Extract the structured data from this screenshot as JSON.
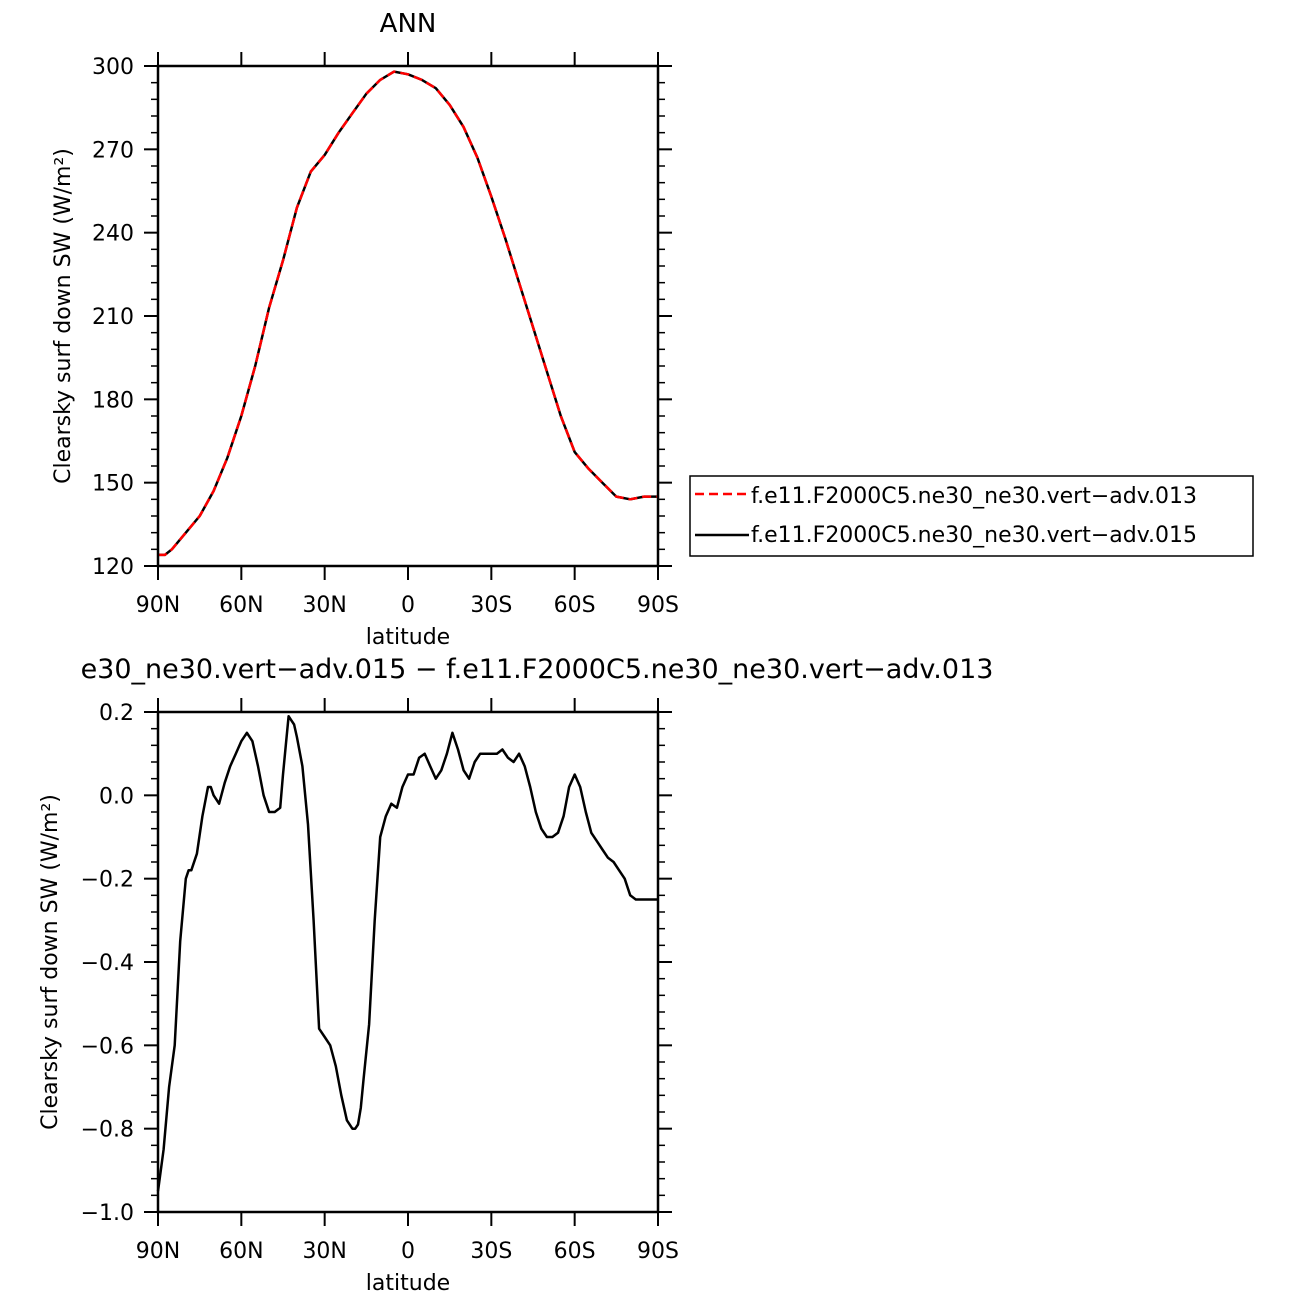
{
  "chart_data": [
    {
      "type": "line",
      "title": "ANN",
      "xlabel": "latitude",
      "ylabel": "Clearsky surf down SW (W/m²)",
      "xlim": [
        90,
        -90
      ],
      "ylim": [
        120,
        300
      ],
      "xticks": [
        90,
        60,
        30,
        0,
        -30,
        -60,
        -90
      ],
      "xtick_labels": [
        "90N",
        "60N",
        "30N",
        "0",
        "30S",
        "60S",
        "90S"
      ],
      "yticks": [
        120,
        150,
        180,
        210,
        240,
        270,
        300
      ],
      "ytick_labels": [
        "120",
        "150",
        "180",
        "210",
        "240",
        "270",
        "300"
      ],
      "grid": false,
      "legend": "right",
      "x": [
        90,
        87.5,
        85,
        80,
        75,
        70,
        65,
        60,
        55,
        50,
        45,
        40,
        35,
        30,
        25,
        20,
        15,
        10,
        5,
        0,
        -5,
        -10,
        -15,
        -20,
        -25,
        -30,
        -35,
        -40,
        -45,
        -50,
        -55,
        -60,
        -65,
        -70,
        -75,
        -80,
        -85,
        -87.5,
        -90
      ],
      "series": [
        {
          "name": "f.e11.F2000C5.ne30_ne30.vert−adv.013",
          "color": "#ff0000",
          "dash": true,
          "values": [
            124,
            124,
            126,
            132,
            138,
            147,
            159,
            174,
            192,
            213,
            230,
            249,
            262,
            268,
            276,
            283,
            290,
            295,
            298,
            297,
            295,
            292,
            286,
            278,
            267,
            253,
            238,
            222,
            206,
            190,
            174,
            161,
            155,
            150,
            145,
            144,
            145,
            145,
            145
          ]
        },
        {
          "name": "f.e11.F2000C5.ne30_ne30.vert−adv.015",
          "color": "#000000",
          "dash": false,
          "values": [
            124,
            124,
            126,
            132,
            138,
            147,
            159,
            174,
            192,
            213,
            230,
            249,
            262,
            268,
            276,
            283,
            290,
            295,
            298,
            297,
            295,
            292,
            286,
            278,
            267,
            253,
            238,
            222,
            206,
            190,
            174,
            161,
            155,
            150,
            145,
            144,
            145,
            145,
            145
          ]
        }
      ]
    },
    {
      "type": "line",
      "title": "e30_ne30.vert−adv.015 − f.e11.F2000C5.ne30_ne30.vert−adv.013",
      "xlabel": "latitude",
      "ylabel": "Clearsky surf down SW (W/m²)",
      "xlim": [
        90,
        -90
      ],
      "ylim": [
        -1.0,
        0.2
      ],
      "xticks": [
        90,
        60,
        30,
        0,
        -30,
        -60,
        -90
      ],
      "xtick_labels": [
        "90N",
        "60N",
        "30N",
        "0",
        "30S",
        "60S",
        "90S"
      ],
      "yticks": [
        -1.0,
        -0.8,
        -0.6,
        -0.4,
        -0.2,
        0.0,
        0.2
      ],
      "ytick_labels": [
        "−1.0",
        "−0.8",
        "−0.6",
        "−0.4",
        "−0.2",
        "0.0",
        "0.2"
      ],
      "grid": false,
      "x": [
        90,
        88,
        86,
        84,
        82,
        80,
        79,
        78,
        76,
        74,
        72,
        71,
        70,
        68,
        66,
        64,
        62,
        60,
        58,
        56,
        54,
        52,
        50,
        48,
        46,
        45,
        44,
        43,
        42,
        41,
        40,
        38,
        36,
        34,
        32,
        30,
        28,
        26,
        24,
        22,
        20,
        19,
        18,
        17,
        16,
        14,
        12,
        10,
        8,
        6,
        4,
        2,
        0,
        -2,
        -4,
        -6,
        -8,
        -10,
        -12,
        -14,
        -16,
        -18,
        -20,
        -22,
        -24,
        -26,
        -28,
        -30,
        -32,
        -34,
        -36,
        -38,
        -40,
        -42,
        -44,
        -46,
        -48,
        -50,
        -52,
        -54,
        -56,
        -58,
        -60,
        -62,
        -64,
        -66,
        -68,
        -70,
        -72,
        -74,
        -76,
        -78,
        -80,
        -82,
        -84,
        -86,
        -88,
        -90
      ],
      "series": [
        {
          "color": "#000000",
          "values": [
            -0.95,
            -0.85,
            -0.7,
            -0.6,
            -0.35,
            -0.2,
            -0.18,
            -0.18,
            -0.14,
            -0.05,
            0.02,
            0.02,
            0.0,
            -0.02,
            0.03,
            0.07,
            0.1,
            0.13,
            0.15,
            0.13,
            0.07,
            0.0,
            -0.04,
            -0.04,
            -0.03,
            0.05,
            0.12,
            0.19,
            0.18,
            0.17,
            0.14,
            0.07,
            -0.07,
            -0.3,
            -0.56,
            -0.58,
            -0.6,
            -0.65,
            -0.72,
            -0.78,
            -0.8,
            -0.8,
            -0.79,
            -0.75,
            -0.68,
            -0.55,
            -0.3,
            -0.1,
            -0.05,
            -0.02,
            -0.03,
            0.02,
            0.05,
            0.05,
            0.09,
            0.1,
            0.07,
            0.04,
            0.06,
            0.1,
            0.15,
            0.11,
            0.06,
            0.04,
            0.08,
            0.1,
            0.1,
            0.1,
            0.1,
            0.11,
            0.09,
            0.08,
            0.1,
            0.07,
            0.02,
            -0.04,
            -0.08,
            -0.1,
            -0.1,
            -0.09,
            -0.05,
            0.02,
            0.05,
            0.02,
            -0.04,
            -0.09,
            -0.11,
            -0.13,
            -0.15,
            -0.16,
            -0.18,
            -0.2,
            -0.24,
            -0.25,
            -0.25,
            -0.25,
            -0.25,
            -0.25
          ]
        }
      ]
    }
  ]
}
